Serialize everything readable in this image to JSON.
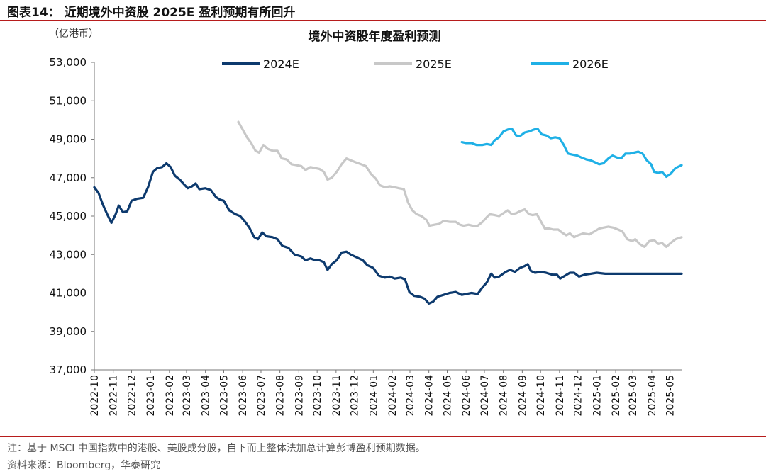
{
  "figure": {
    "title": "图表14：  近期境外中资股 2025E 盈利预期有所回升",
    "note": "注：基于 MSCI 中国指数中的港股、美股成分股，自下而上整体法加总计算彭博盈利预期数据。",
    "source": "资料来源：Bloomberg，华泰研究"
  },
  "chart_data": {
    "type": "line",
    "title": "境外中资股年度盈利预测",
    "unit_label": "（亿港币）",
    "ylim": [
      37000,
      53000
    ],
    "yticks": [
      37000,
      39000,
      41000,
      43000,
      45000,
      47000,
      49000,
      51000,
      53000
    ],
    "ytick_labels": [
      "37,000",
      "39,000",
      "41,000",
      "43,000",
      "45,000",
      "47,000",
      "49,000",
      "51,000",
      "53,000"
    ],
    "categories": [
      "2022-10",
      "2022-11",
      "2022-12",
      "2023-01",
      "2023-02",
      "2023-03",
      "2023-04",
      "2023-05",
      "2023-06",
      "2023-07",
      "2023-08",
      "2023-09",
      "2023-10",
      "2023-11",
      "2023-12",
      "2024-01",
      "2024-02",
      "2024-03",
      "2024-04",
      "2024-05",
      "2024-06",
      "2024-07",
      "2024-08",
      "2024-09",
      "2024-10",
      "2024-11",
      "2024-12",
      "2025-01",
      "2025-02",
      "2025-03",
      "2025-04",
      "2025-05"
    ],
    "x_start": "2022-10-01",
    "x_end": "2025-05-20",
    "legend_position": "top",
    "grid": false,
    "series": [
      {
        "name": "2024E",
        "color": "#0d3a6e",
        "points": [
          [
            "2022-10-01",
            46500
          ],
          [
            "2022-10-08",
            46200
          ],
          [
            "2022-10-15",
            45600
          ],
          [
            "2022-10-22",
            45100
          ],
          [
            "2022-10-29",
            44650
          ],
          [
            "2022-11-05",
            45100
          ],
          [
            "2022-11-10",
            45550
          ],
          [
            "2022-11-17",
            45200
          ],
          [
            "2022-11-24",
            45250
          ],
          [
            "2022-12-01",
            45800
          ],
          [
            "2022-12-10",
            45900
          ],
          [
            "2022-12-20",
            45950
          ],
          [
            "2022-12-28",
            46500
          ],
          [
            "2023-01-05",
            47300
          ],
          [
            "2023-01-12",
            47500
          ],
          [
            "2023-01-20",
            47550
          ],
          [
            "2023-01-27",
            47750
          ],
          [
            "2023-02-03",
            47550
          ],
          [
            "2023-02-10",
            47100
          ],
          [
            "2023-02-18",
            46900
          ],
          [
            "2023-02-25",
            46650
          ],
          [
            "2023-03-03",
            46450
          ],
          [
            "2023-03-10",
            46550
          ],
          [
            "2023-03-16",
            46700
          ],
          [
            "2023-03-22",
            46400
          ],
          [
            "2023-04-01",
            46450
          ],
          [
            "2023-04-10",
            46350
          ],
          [
            "2023-04-18",
            46000
          ],
          [
            "2023-04-25",
            45850
          ],
          [
            "2023-05-01",
            45800
          ],
          [
            "2023-05-10",
            45300
          ],
          [
            "2023-05-20",
            45100
          ],
          [
            "2023-05-28",
            45000
          ],
          [
            "2023-06-05",
            44700
          ],
          [
            "2023-06-12",
            44400
          ],
          [
            "2023-06-20",
            43900
          ],
          [
            "2023-06-26",
            43800
          ],
          [
            "2023-07-03",
            44150
          ],
          [
            "2023-07-10",
            43950
          ],
          [
            "2023-07-20",
            43900
          ],
          [
            "2023-07-28",
            43800
          ],
          [
            "2023-08-05",
            43450
          ],
          [
            "2023-08-15",
            43350
          ],
          [
            "2023-08-25",
            43000
          ],
          [
            "2023-09-05",
            42900
          ],
          [
            "2023-09-12",
            42700
          ],
          [
            "2023-09-20",
            42800
          ],
          [
            "2023-09-28",
            42700
          ],
          [
            "2023-10-05",
            42700
          ],
          [
            "2023-10-12",
            42600
          ],
          [
            "2023-10-18",
            42200
          ],
          [
            "2023-10-25",
            42500
          ],
          [
            "2023-11-02",
            42700
          ],
          [
            "2023-11-10",
            43100
          ],
          [
            "2023-11-18",
            43150
          ],
          [
            "2023-11-25",
            43000
          ],
          [
            "2023-12-05",
            42850
          ],
          [
            "2023-12-15",
            42700
          ],
          [
            "2023-12-22",
            42450
          ],
          [
            "2024-01-01",
            42300
          ],
          [
            "2024-01-10",
            41900
          ],
          [
            "2024-01-20",
            41800
          ],
          [
            "2024-01-28",
            41850
          ],
          [
            "2024-02-05",
            41750
          ],
          [
            "2024-02-15",
            41800
          ],
          [
            "2024-02-22",
            41700
          ],
          [
            "2024-02-29",
            41050
          ],
          [
            "2024-03-08",
            40850
          ],
          [
            "2024-03-18",
            40800
          ],
          [
            "2024-03-25",
            40700
          ],
          [
            "2024-04-01",
            40450
          ],
          [
            "2024-04-08",
            40550
          ],
          [
            "2024-04-15",
            40800
          ],
          [
            "2024-04-25",
            40900
          ],
          [
            "2024-05-05",
            41000
          ],
          [
            "2024-05-15",
            41050
          ],
          [
            "2024-05-25",
            40900
          ],
          [
            "2024-06-01",
            40950
          ],
          [
            "2024-06-10",
            41000
          ],
          [
            "2024-06-20",
            40950
          ],
          [
            "2024-06-28",
            41300
          ],
          [
            "2024-07-05",
            41550
          ],
          [
            "2024-07-12",
            42000
          ],
          [
            "2024-07-18",
            41800
          ],
          [
            "2024-07-25",
            41850
          ],
          [
            "2024-08-05",
            42100
          ],
          [
            "2024-08-12",
            42200
          ],
          [
            "2024-08-20",
            42100
          ],
          [
            "2024-08-28",
            42300
          ],
          [
            "2024-09-05",
            42400
          ],
          [
            "2024-09-10",
            42500
          ],
          [
            "2024-09-15",
            42150
          ],
          [
            "2024-09-22",
            42050
          ],
          [
            "2024-10-01",
            42100
          ],
          [
            "2024-10-10",
            42050
          ],
          [
            "2024-10-20",
            41950
          ],
          [
            "2024-10-28",
            41950
          ],
          [
            "2024-11-02",
            41750
          ],
          [
            "2024-11-10",
            41900
          ],
          [
            "2024-11-18",
            42050
          ],
          [
            "2024-11-25",
            42050
          ],
          [
            "2024-12-03",
            41850
          ],
          [
            "2024-12-12",
            41950
          ],
          [
            "2024-12-22",
            42000
          ],
          [
            "2025-01-01",
            42050
          ],
          [
            "2025-01-15",
            42000
          ],
          [
            "2025-02-01",
            42000
          ],
          [
            "2025-03-01",
            42000
          ],
          [
            "2025-04-01",
            42000
          ],
          [
            "2025-05-01",
            42000
          ],
          [
            "2025-05-20",
            42000
          ]
        ]
      },
      {
        "name": "2025E",
        "color": "#c8c8c8",
        "points": [
          [
            "2023-05-25",
            49900
          ],
          [
            "2023-06-01",
            49500
          ],
          [
            "2023-06-08",
            49100
          ],
          [
            "2023-06-15",
            48800
          ],
          [
            "2023-06-22",
            48400
          ],
          [
            "2023-06-28",
            48300
          ],
          [
            "2023-07-05",
            48700
          ],
          [
            "2023-07-12",
            48500
          ],
          [
            "2023-07-20",
            48400
          ],
          [
            "2023-07-28",
            48400
          ],
          [
            "2023-08-04",
            48000
          ],
          [
            "2023-08-12",
            47950
          ],
          [
            "2023-08-20",
            47700
          ],
          [
            "2023-08-28",
            47650
          ],
          [
            "2023-09-05",
            47600
          ],
          [
            "2023-09-12",
            47400
          ],
          [
            "2023-09-20",
            47550
          ],
          [
            "2023-09-28",
            47500
          ],
          [
            "2023-10-05",
            47450
          ],
          [
            "2023-10-12",
            47300
          ],
          [
            "2023-10-18",
            46900
          ],
          [
            "2023-10-25",
            47000
          ],
          [
            "2023-11-02",
            47300
          ],
          [
            "2023-11-10",
            47700
          ],
          [
            "2023-11-18",
            48000
          ],
          [
            "2023-11-25",
            47900
          ],
          [
            "2023-12-03",
            47800
          ],
          [
            "2023-12-12",
            47700
          ],
          [
            "2023-12-20",
            47600
          ],
          [
            "2023-12-28",
            47200
          ],
          [
            "2024-01-05",
            46950
          ],
          [
            "2024-01-12",
            46600
          ],
          [
            "2024-01-20",
            46500
          ],
          [
            "2024-01-28",
            46550
          ],
          [
            "2024-02-05",
            46500
          ],
          [
            "2024-02-12",
            46450
          ],
          [
            "2024-02-20",
            46400
          ],
          [
            "2024-02-27",
            45700
          ],
          [
            "2024-03-05",
            45300
          ],
          [
            "2024-03-12",
            45100
          ],
          [
            "2024-03-20",
            45000
          ],
          [
            "2024-03-28",
            44800
          ],
          [
            "2024-04-02",
            44500
          ],
          [
            "2024-04-10",
            44550
          ],
          [
            "2024-04-18",
            44600
          ],
          [
            "2024-04-25",
            44750
          ],
          [
            "2024-05-05",
            44700
          ],
          [
            "2024-05-15",
            44700
          ],
          [
            "2024-05-22",
            44550
          ],
          [
            "2024-05-28",
            44500
          ],
          [
            "2024-06-05",
            44550
          ],
          [
            "2024-06-12",
            44500
          ],
          [
            "2024-06-20",
            44500
          ],
          [
            "2024-06-28",
            44700
          ],
          [
            "2024-07-05",
            44950
          ],
          [
            "2024-07-10",
            45100
          ],
          [
            "2024-07-18",
            45050
          ],
          [
            "2024-07-25",
            45000
          ],
          [
            "2024-08-01",
            45150
          ],
          [
            "2024-08-08",
            45300
          ],
          [
            "2024-08-15",
            45100
          ],
          [
            "2024-08-22",
            45150
          ],
          [
            "2024-08-28",
            45250
          ],
          [
            "2024-09-05",
            45350
          ],
          [
            "2024-09-12",
            45100
          ],
          [
            "2024-09-18",
            45050
          ],
          [
            "2024-09-25",
            45100
          ],
          [
            "2024-10-02",
            44700
          ],
          [
            "2024-10-08",
            44350
          ],
          [
            "2024-10-15",
            44350
          ],
          [
            "2024-10-22",
            44300
          ],
          [
            "2024-10-30",
            44300
          ],
          [
            "2024-11-05",
            44150
          ],
          [
            "2024-11-12",
            44000
          ],
          [
            "2024-11-18",
            44100
          ],
          [
            "2024-11-25",
            43900
          ],
          [
            "2024-12-01",
            44000
          ],
          [
            "2024-12-10",
            44100
          ],
          [
            "2024-12-20",
            44050
          ],
          [
            "2024-12-28",
            44200
          ],
          [
            "2025-01-05",
            44350
          ],
          [
            "2025-01-12",
            44400
          ],
          [
            "2025-01-20",
            44450
          ],
          [
            "2025-01-28",
            44400
          ],
          [
            "2025-02-05",
            44300
          ],
          [
            "2025-02-12",
            44200
          ],
          [
            "2025-02-20",
            43800
          ],
          [
            "2025-02-28",
            43700
          ],
          [
            "2025-03-05",
            43800
          ],
          [
            "2025-03-12",
            43550
          ],
          [
            "2025-03-20",
            43400
          ],
          [
            "2025-03-28",
            43700
          ],
          [
            "2025-04-05",
            43750
          ],
          [
            "2025-04-12",
            43550
          ],
          [
            "2025-04-18",
            43600
          ],
          [
            "2025-04-25",
            43400
          ],
          [
            "2025-05-02",
            43600
          ],
          [
            "2025-05-10",
            43800
          ],
          [
            "2025-05-20",
            43900
          ]
        ]
      },
      {
        "name": "2026E",
        "color": "#1fb0e6",
        "points": [
          [
            "2024-05-25",
            48850
          ],
          [
            "2024-06-01",
            48800
          ],
          [
            "2024-06-10",
            48800
          ],
          [
            "2024-06-18",
            48700
          ],
          [
            "2024-06-28",
            48700
          ],
          [
            "2024-07-05",
            48750
          ],
          [
            "2024-07-12",
            48700
          ],
          [
            "2024-07-18",
            48950
          ],
          [
            "2024-07-25",
            49100
          ],
          [
            "2024-08-01",
            49400
          ],
          [
            "2024-08-08",
            49500
          ],
          [
            "2024-08-15",
            49550
          ],
          [
            "2024-08-22",
            49200
          ],
          [
            "2024-08-28",
            49150
          ],
          [
            "2024-09-05",
            49350
          ],
          [
            "2024-09-12",
            49400
          ],
          [
            "2024-09-20",
            49500
          ],
          [
            "2024-09-26",
            49550
          ],
          [
            "2024-10-03",
            49250
          ],
          [
            "2024-10-10",
            49200
          ],
          [
            "2024-10-18",
            49050
          ],
          [
            "2024-10-25",
            49100
          ],
          [
            "2024-11-01",
            49050
          ],
          [
            "2024-11-08",
            48700
          ],
          [
            "2024-11-15",
            48250
          ],
          [
            "2024-11-22",
            48200
          ],
          [
            "2024-11-30",
            48150
          ],
          [
            "2024-12-07",
            48050
          ],
          [
            "2024-12-15",
            47950
          ],
          [
            "2024-12-22",
            47900
          ],
          [
            "2024-12-29",
            47800
          ],
          [
            "2025-01-05",
            47700
          ],
          [
            "2025-01-12",
            47750
          ],
          [
            "2025-01-20",
            48000
          ],
          [
            "2025-01-27",
            48150
          ],
          [
            "2025-02-03",
            48050
          ],
          [
            "2025-02-10",
            48000
          ],
          [
            "2025-02-17",
            48250
          ],
          [
            "2025-02-24",
            48250
          ],
          [
            "2025-03-03",
            48300
          ],
          [
            "2025-03-10",
            48350
          ],
          [
            "2025-03-17",
            48250
          ],
          [
            "2025-03-24",
            47900
          ],
          [
            "2025-03-31",
            47700
          ],
          [
            "2025-04-05",
            47300
          ],
          [
            "2025-04-12",
            47250
          ],
          [
            "2025-04-18",
            47300
          ],
          [
            "2025-04-25",
            47050
          ],
          [
            "2025-05-02",
            47200
          ],
          [
            "2025-05-10",
            47500
          ],
          [
            "2025-05-20",
            47650
          ]
        ]
      }
    ]
  }
}
